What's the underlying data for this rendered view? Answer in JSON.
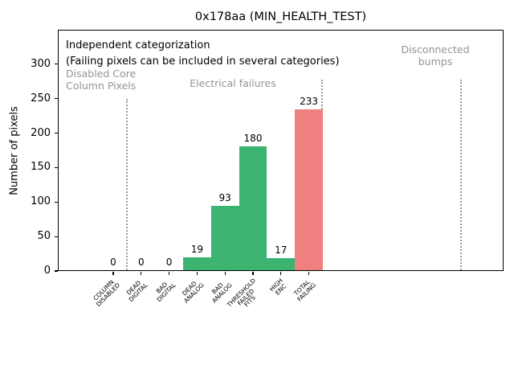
{
  "title": "0x178aa (MIN_HEALTH_TEST)",
  "ylabel": "Number of pixels",
  "annotations": {
    "line1": "Independent categorization",
    "line2": "(Failing pixels can be included in several categories)",
    "sections": [
      {
        "name": "disabled-core-column-pixels",
        "label": "Disabled Core\nColumn Pixels"
      },
      {
        "name": "electrical-failures",
        "label": "Electrical failures"
      },
      {
        "name": "disconnected-bumps",
        "label": "Disconnected\nbumps"
      }
    ]
  },
  "colors": {
    "bar_green": "#3cb371",
    "bar_red": "#f08080",
    "muted_text": "#949494",
    "separator": "#999999",
    "axis": "#000000"
  },
  "chart_data": {
    "type": "bar",
    "title": "0x178aa (MIN_HEALTH_TEST)",
    "xlabel": "",
    "ylabel": "Number of pixels",
    "categories": [
      "COLUMN\nDISABLED",
      "DEAD\nDIGITAL",
      "BAD\nDIGITAL",
      "DEAD\nANALOG",
      "BAD\nANALOG",
      "THRESHOLD\nFAILED\nFITS",
      "HIGH\nENC",
      "TOTAL\nFAILING"
    ],
    "values": [
      0,
      0,
      0,
      19,
      93,
      180,
      17,
      233
    ],
    "bar_color_keys": [
      "bar_green",
      "bar_green",
      "bar_green",
      "bar_green",
      "bar_green",
      "bar_green",
      "bar_green",
      "bar_red"
    ],
    "data_labels": [
      "0",
      "0",
      "0",
      "19",
      "93",
      "180",
      "17",
      "233"
    ],
    "yticks": [
      0,
      50,
      100,
      150,
      200,
      250,
      300
    ],
    "ylim": [
      0,
      350
    ],
    "grid": false,
    "legend": null,
    "bar_width_fraction": 1.0,
    "section_separators": [
      {
        "after_category_index": 0,
        "section_after": "Electrical failures"
      },
      {
        "after_category_index": 7,
        "section_after": "(unlabeled)"
      },
      {
        "after_category_index": 7,
        "section_after": "Disconnected bumps"
      }
    ]
  }
}
